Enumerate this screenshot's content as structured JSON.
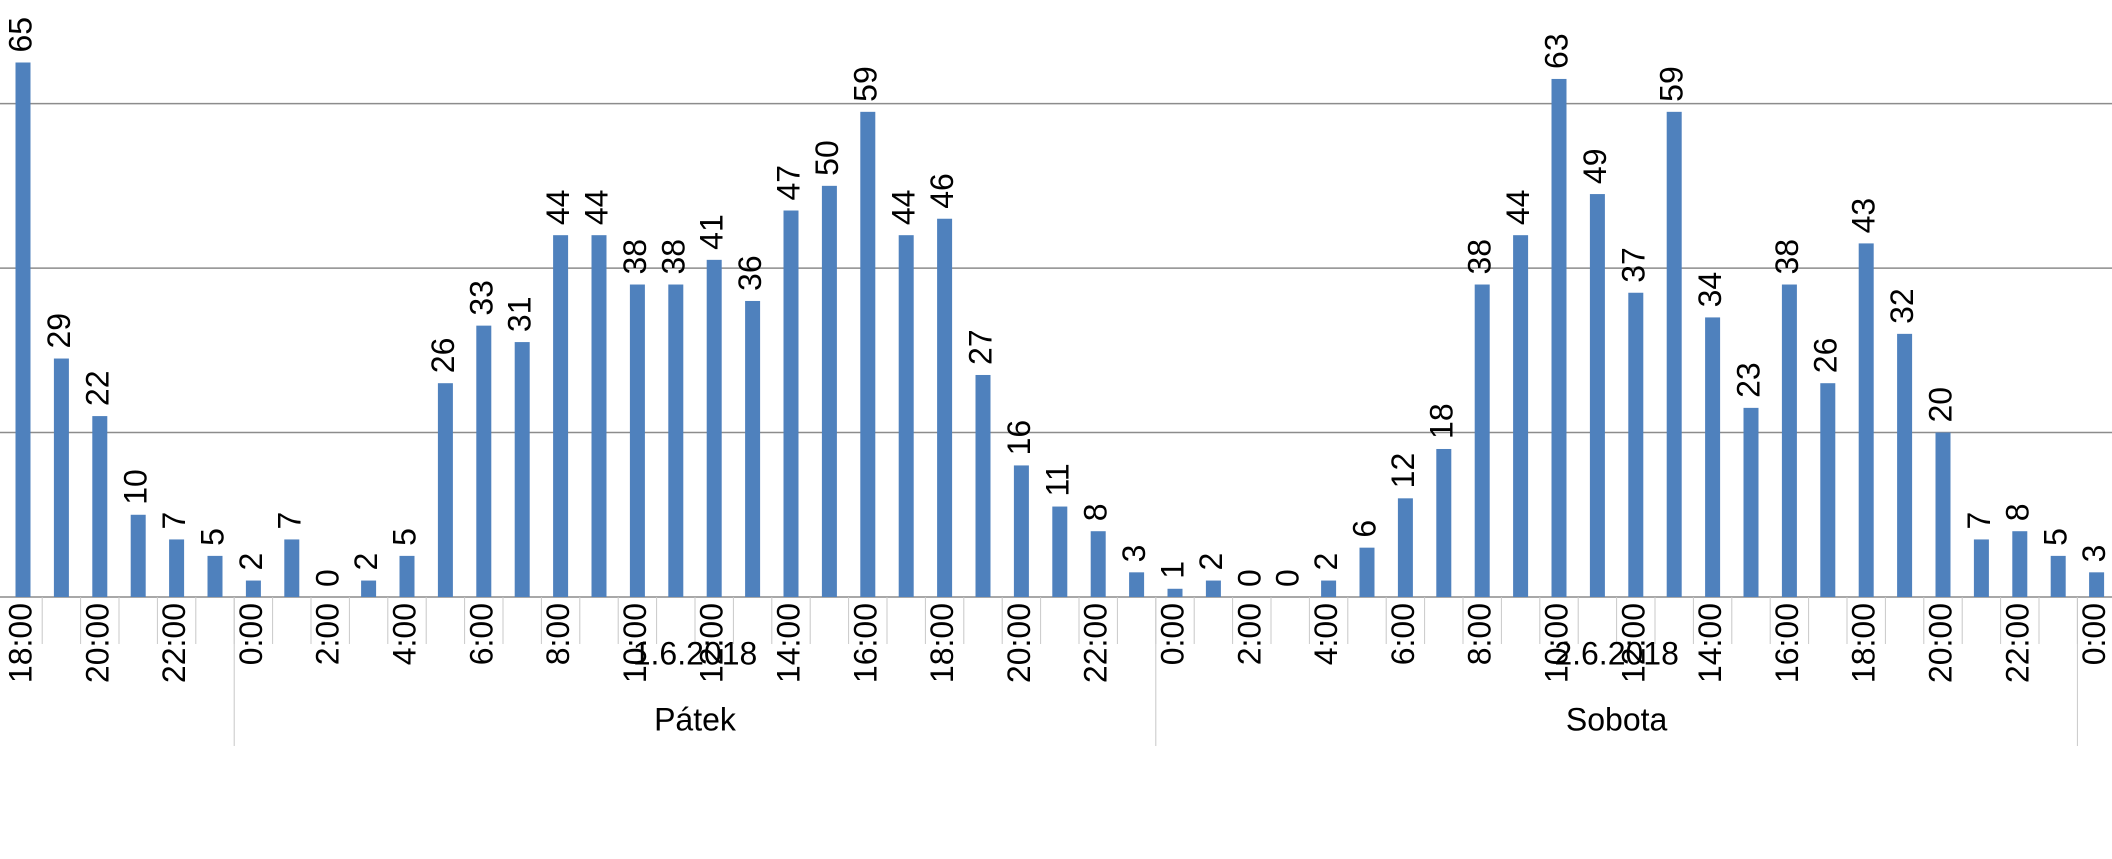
{
  "chart_data": {
    "type": "bar",
    "color": "#4f81bd",
    "grid": true,
    "show_ytick_labels": false,
    "ylim": [
      0,
      72.6
    ],
    "yticks": [
      20,
      40,
      60
    ],
    "categories": [
      "18:00",
      null,
      "20:00",
      null,
      "22:00",
      null,
      "0:00",
      null,
      "2:00",
      null,
      "4:00",
      null,
      "6:00",
      null,
      "8:00",
      null,
      "10:00",
      null,
      "12:00",
      null,
      "14:00",
      null,
      "16:00",
      null,
      "18:00",
      null,
      "20:00",
      null,
      "22:00",
      null,
      "0:00",
      null,
      "2:00",
      null,
      "4:00",
      null,
      "6:00",
      null,
      "8:00",
      null,
      "10:00",
      null,
      "12:00",
      null,
      "14:00",
      null,
      "16:00",
      null,
      "18:00",
      null,
      "20:00",
      null,
      "22:00",
      null,
      "0:00"
    ],
    "values": [
      65,
      29,
      22,
      10,
      7,
      5,
      2,
      7,
      0,
      2,
      5,
      26,
      33,
      31,
      44,
      44,
      38,
      38,
      41,
      36,
      47,
      50,
      59,
      44,
      46,
      27,
      16,
      11,
      8,
      3,
      1,
      2,
      0,
      0,
      2,
      6,
      12,
      18,
      38,
      44,
      63,
      49,
      37,
      59,
      34,
      23,
      38,
      26,
      43,
      32,
      20,
      7,
      8,
      5,
      3
    ],
    "groups": [
      {
        "date": "1.6.2018",
        "day": "Pátek",
        "span": [
          6,
          29
        ]
      },
      {
        "date": "2.6.2018",
        "day": "Sobota",
        "span": [
          30,
          53
        ]
      }
    ]
  }
}
